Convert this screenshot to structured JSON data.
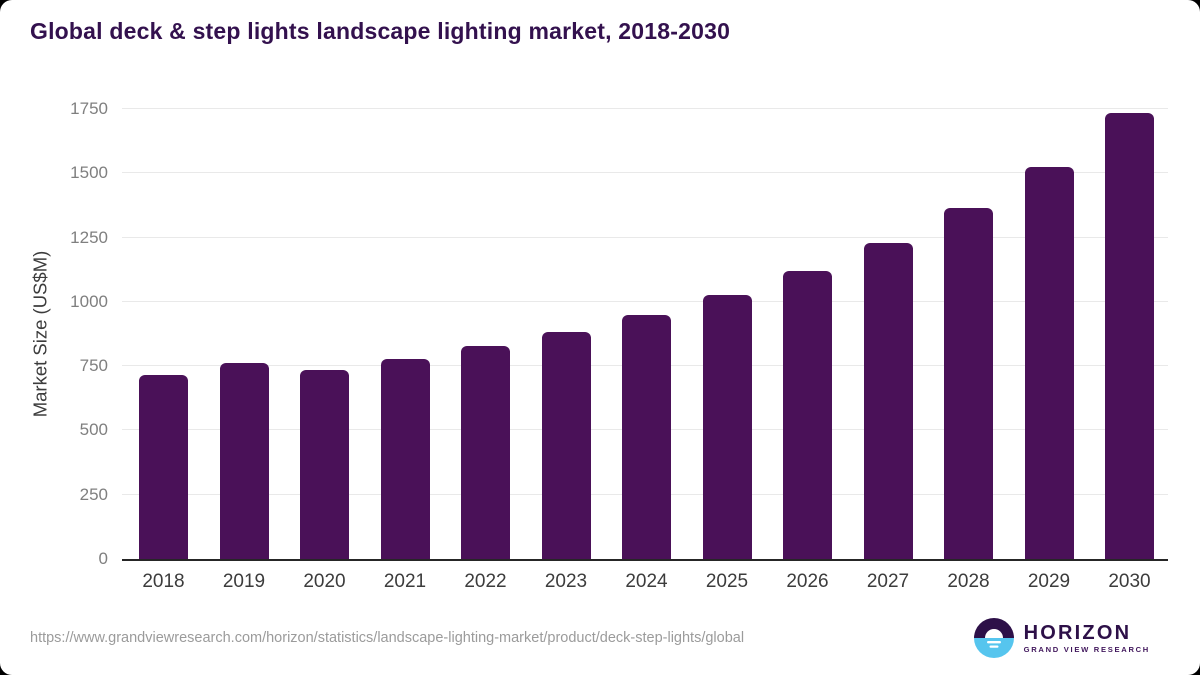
{
  "page": {
    "title": "Global deck & step lights landscape lighting market, 2018-2030",
    "source_url": "https://www.grandviewresearch.com/horizon/statistics/landscape-lighting-market/product/deck-step-lights/global",
    "logo": {
      "name": "HORIZON",
      "subtitle": "GRAND VIEW RESEARCH"
    }
  },
  "chart_data": {
    "type": "bar",
    "title": "Global deck & step lights landscape lighting market, 2018-2030",
    "categories": [
      "2018",
      "2019",
      "2020",
      "2021",
      "2022",
      "2023",
      "2024",
      "2025",
      "2026",
      "2027",
      "2028",
      "2029",
      "2030"
    ],
    "values": [
      715,
      763,
      736,
      779,
      829,
      884,
      949,
      1026,
      1120,
      1228,
      1366,
      1526,
      1736
    ],
    "xlabel": "",
    "ylabel": "Market Size (US$M)",
    "ylim": [
      0,
      1750
    ],
    "yticks": [
      0,
      250,
      500,
      750,
      1000,
      1250,
      1500,
      1750
    ],
    "grid": true,
    "legend": "none",
    "colors": {
      "bar": "#4a1158",
      "title": "#33114e",
      "axis_line": "#262626",
      "gridline": "#e9e9e9",
      "tick_text": "#7f7f7f",
      "axis_text": "#3c3c3c",
      "source_text": "#9b9b9b",
      "logo_purple": "#2d1048",
      "logo_blue": "#56c5ee"
    }
  }
}
